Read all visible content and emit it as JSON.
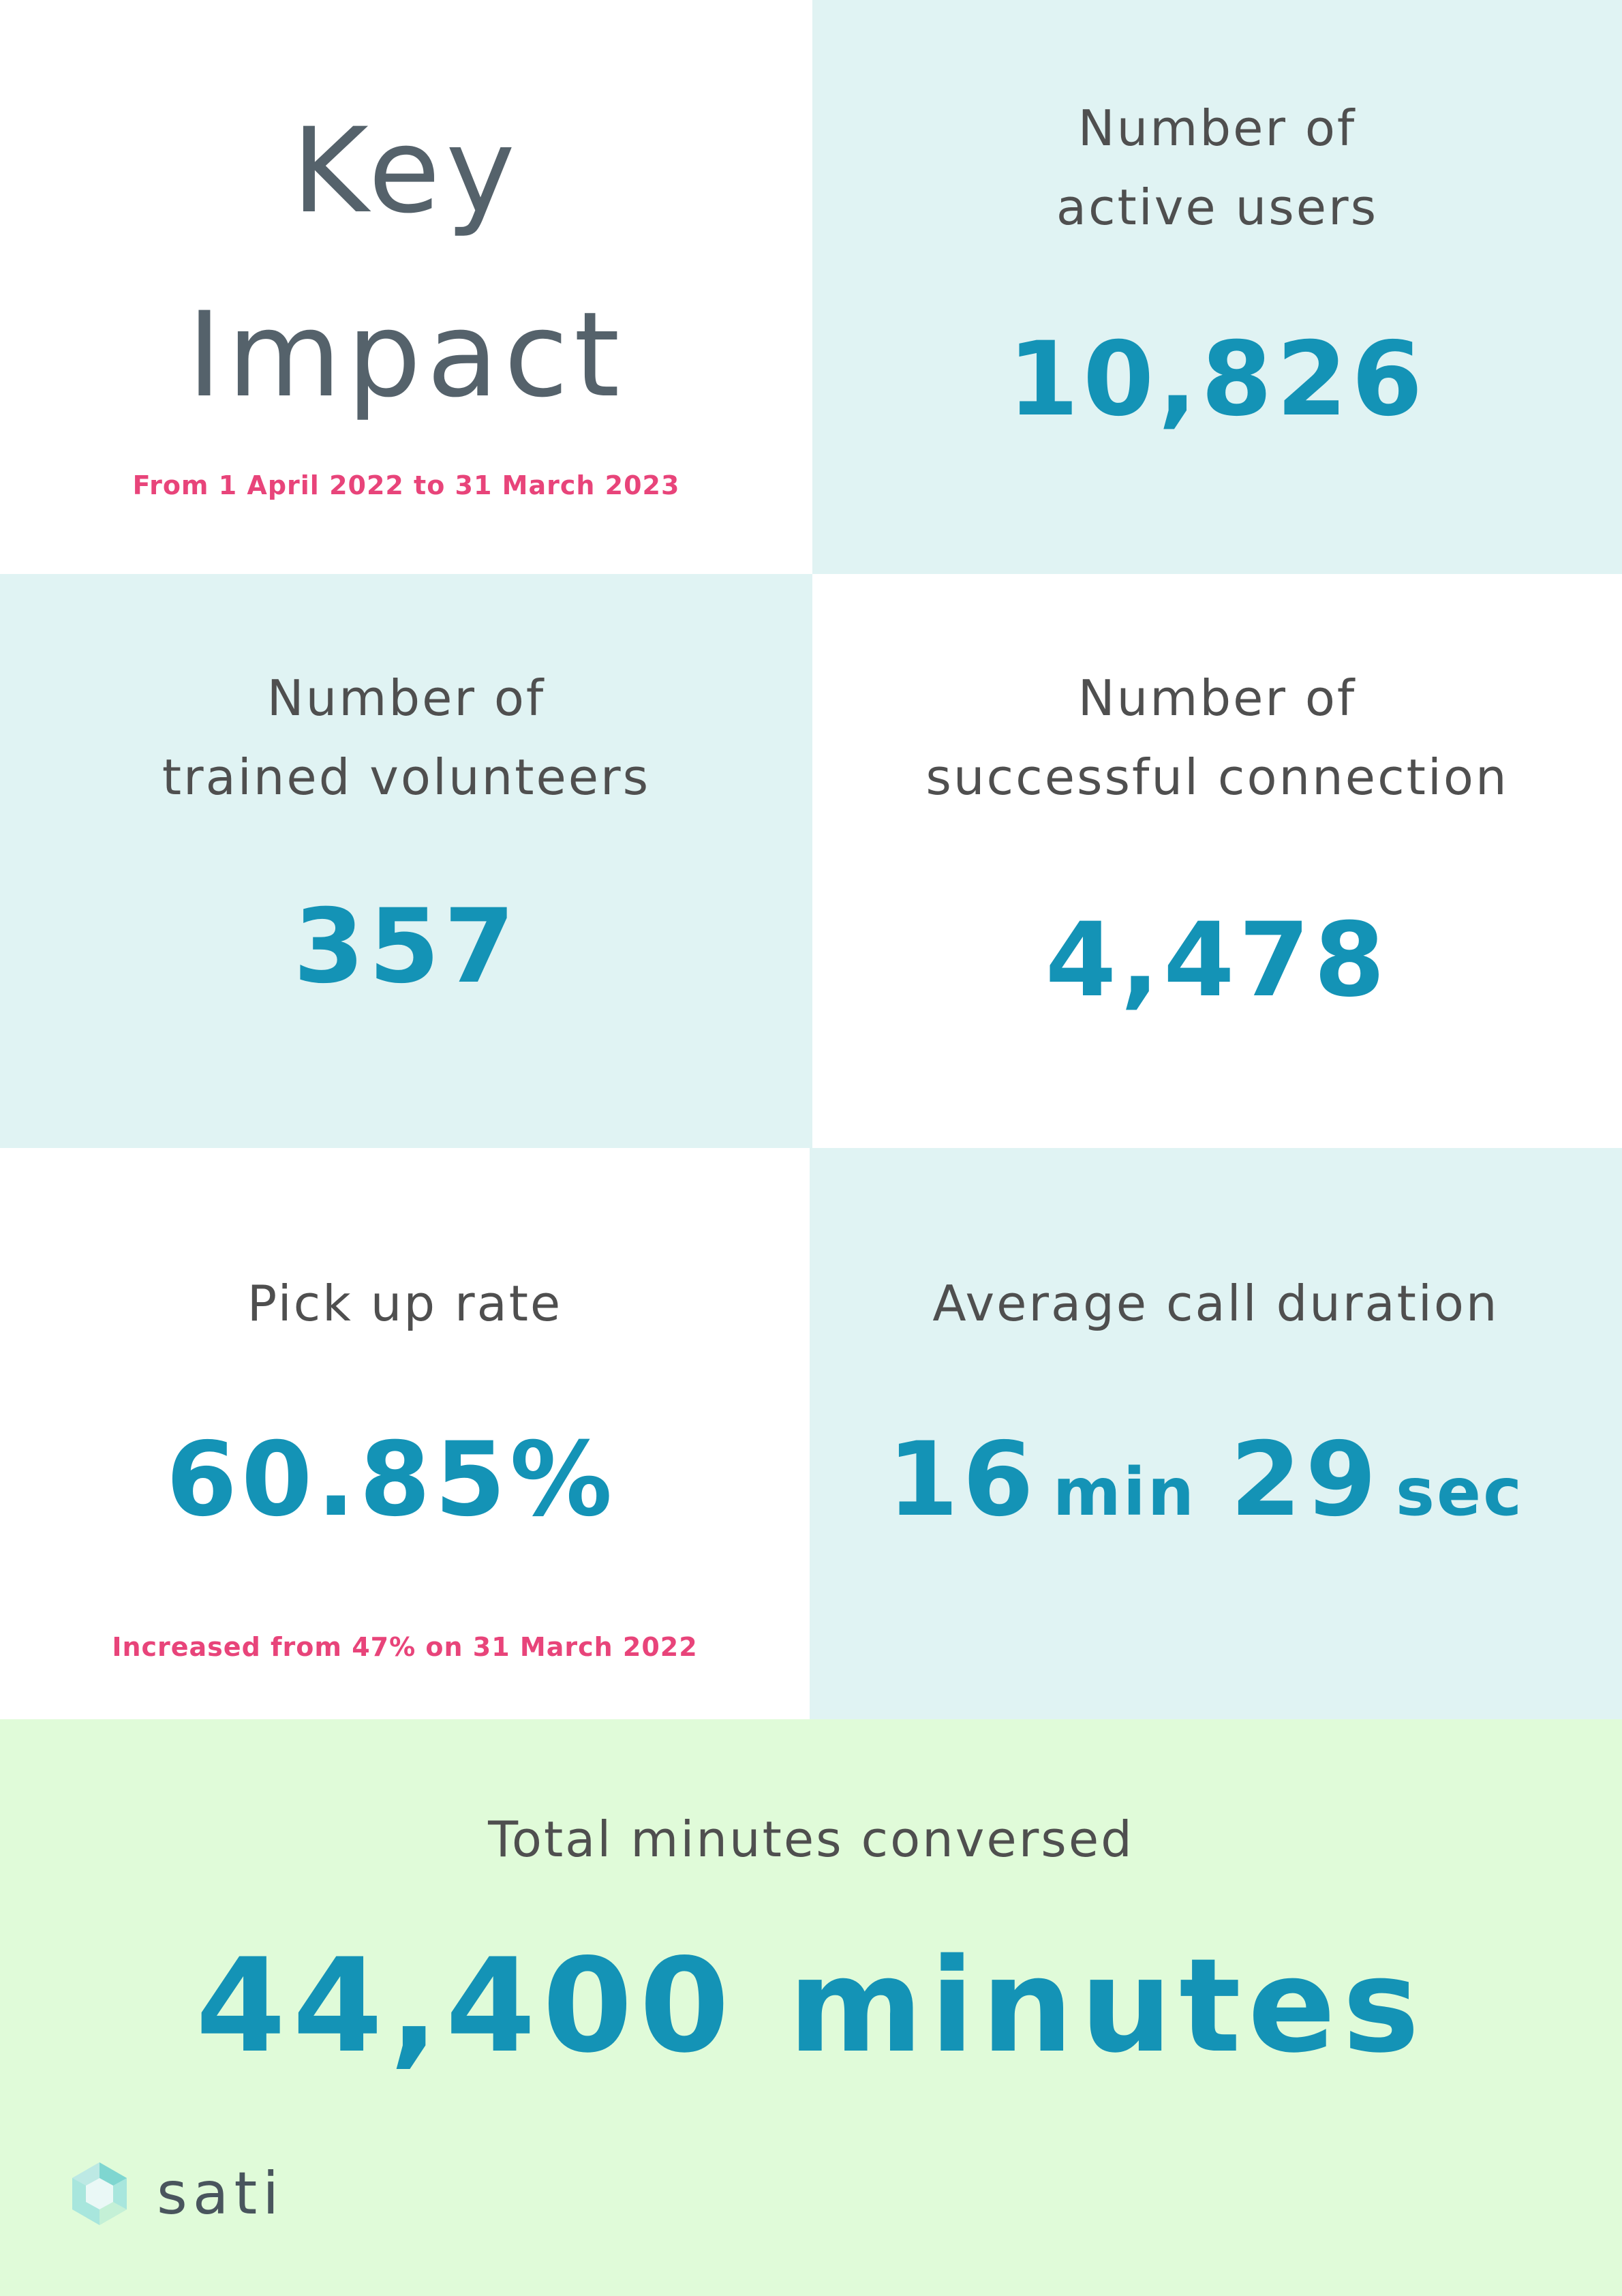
{
  "header": {
    "title_line1": "Key",
    "title_line2": "Impact",
    "period": "From 1 April 2022 to 31 March 2023"
  },
  "active_users": {
    "label_line1": "Number of",
    "label_line2": "active users",
    "value": "10,826"
  },
  "trained_volunteers": {
    "label_line1": "Number of",
    "label_line2": "trained volunteers",
    "value": "357"
  },
  "successful_connection": {
    "label_line1": "Number of",
    "label_line2": "successful connection",
    "value": "4,478"
  },
  "pick_up_rate": {
    "label": "Pick up rate",
    "value": "60.85%",
    "note": "Increased from 47% on 31 March 2022"
  },
  "average_call_duration": {
    "label": "Average call duration",
    "minutes": "16",
    "minutes_unit": "min",
    "seconds": "29",
    "seconds_unit": "sec"
  },
  "total_minutes": {
    "label": "Total minutes conversed",
    "value": "44,400 minutes"
  },
  "brand": {
    "name": "sati",
    "icon": "sati-logo-icon"
  },
  "colors": {
    "teal_panel": "#e0f3f3",
    "mint_panel": "#e0fbd9",
    "value_blue": "#1493b6",
    "note_pink": "#e8447a",
    "label_grey": "#4f4f4f"
  }
}
